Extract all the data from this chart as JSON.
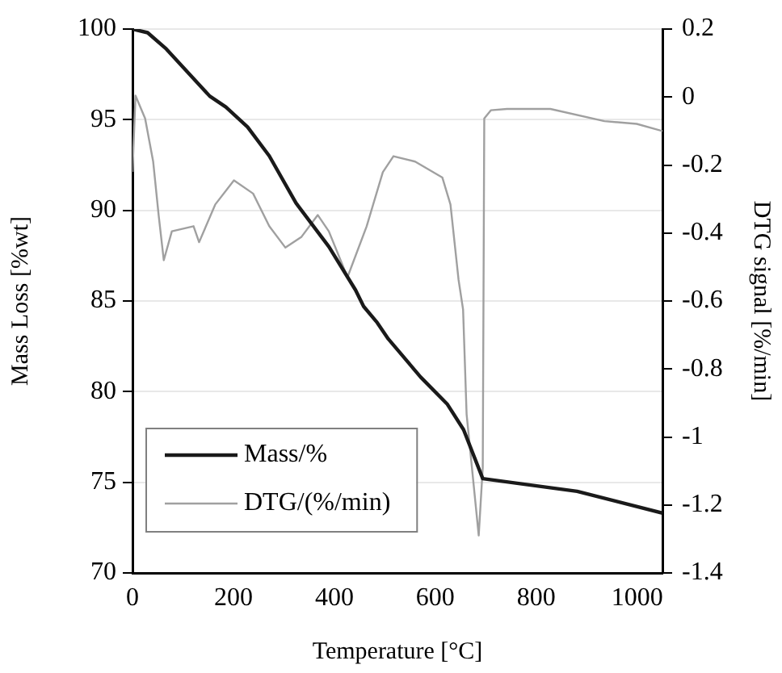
{
  "chart_data": {
    "type": "line",
    "xlabel": "Temperature [°C]",
    "ylabel": "Mass Loss [%wt]",
    "y2label": "DTG signal [%/min]",
    "xlim": [
      0,
      1050
    ],
    "xticks": [
      0,
      200,
      400,
      600,
      800,
      1000
    ],
    "ylim": [
      70,
      100
    ],
    "yticks": [
      70,
      75,
      80,
      85,
      90,
      95,
      100
    ],
    "y2lim": [
      -1.4,
      0.2
    ],
    "y2ticks": [
      -1.4,
      -1.2,
      -1,
      -0.8,
      -0.6,
      -0.4,
      -0.2,
      0,
      0.2
    ],
    "grid": "y",
    "legend": "bottom left",
    "marker": "none",
    "line_style": "solid",
    "series": [
      {
        "name": "Mass/%",
        "color": "#1a1a1a",
        "x": [
          0,
          30,
          67,
          153,
          185,
          228,
          271,
          324,
          389,
          442,
          458,
          485,
          507,
          571,
          624,
          656,
          694,
          774,
          881,
          1050
        ],
        "values": [
          100,
          99.8,
          98.9,
          96.3,
          95.7,
          94.6,
          93.0,
          90.4,
          88.0,
          85.6,
          84.7,
          83.8,
          82.9,
          80.8,
          79.3,
          77.9,
          75.2,
          74.9,
          74.5,
          73.3
        ]
      },
      {
        "name": "DTG/(%/min)",
        "color": "#a0a0a0",
        "axis": "y2",
        "x": [
          0,
          6,
          25,
          41,
          52,
          62,
          78,
          121,
          132,
          164,
          201,
          239,
          271,
          303,
          335,
          367,
          389,
          426,
          464,
          496,
          517,
          560,
          614,
          630,
          646,
          655,
          662,
          686,
          694,
          697,
          710,
          742,
          828,
          935,
          999,
          1050
        ],
        "values": [
          -0.22,
          0.004,
          -0.063,
          -0.19,
          -0.35,
          -0.48,
          -0.395,
          -0.38,
          -0.427,
          -0.316,
          -0.245,
          -0.284,
          -0.38,
          -0.443,
          -0.411,
          -0.347,
          -0.395,
          -0.53,
          -0.38,
          -0.221,
          -0.174,
          -0.19,
          -0.237,
          -0.316,
          -0.537,
          -0.625,
          -0.933,
          -1.29,
          -1.09,
          -0.063,
          -0.039,
          -0.035,
          -0.035,
          -0.071,
          -0.079,
          -0.1
        ]
      }
    ]
  }
}
